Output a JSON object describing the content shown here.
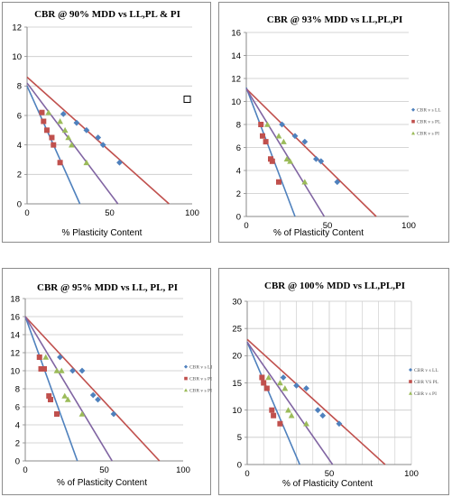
{
  "colors": {
    "ll": "#4f81bd",
    "pl": "#c0504d",
    "pi": "#9bbb59",
    "trend_ll": "#4f81bd",
    "trend_pl": "#c0504d",
    "trend_pi": "#8064a2",
    "grid": "#c8c8c8"
  },
  "chart_data": [
    {
      "type": "scatter",
      "title": "CBR @ 90% MDD vs LL,PL & PI",
      "xlabel": "% Plasticity Content",
      "xlim": [
        0,
        100
      ],
      "ylim": [
        0,
        12
      ],
      "xticks": [
        "0",
        "50",
        "100"
      ],
      "yticks": [
        "0",
        "2",
        "4",
        "6",
        "8",
        "10",
        "12"
      ],
      "xgrid": false,
      "ygrid": true,
      "legend": [],
      "series": [
        {
          "key": "ll",
          "marker": "diamond",
          "points": [
            [
              22,
              6.1
            ],
            [
              30,
              5.5
            ],
            [
              36,
              5
            ],
            [
              43,
              4.5
            ],
            [
              46,
              4
            ],
            [
              56,
              2.8
            ]
          ]
        },
        {
          "key": "pl",
          "marker": "square",
          "points": [
            [
              9,
              6.2
            ],
            [
              10,
              5.6
            ],
            [
              12,
              5
            ],
            [
              15,
              4.5
            ],
            [
              16,
              4
            ],
            [
              20,
              2.8
            ]
          ]
        },
        {
          "key": "pi",
          "marker": "triangle",
          "points": [
            [
              13,
              6.2
            ],
            [
              20,
              5.6
            ],
            [
              23,
              5
            ],
            [
              25,
              4.5
            ],
            [
              27,
              4
            ],
            [
              36,
              2.8
            ]
          ]
        }
      ],
      "trends": [
        {
          "key": "trend_ll",
          "from": [
            0,
            8.0
          ],
          "to": [
            32,
            0
          ]
        },
        {
          "key": "trend_pl",
          "from": [
            0,
            8.6
          ],
          "to": [
            86,
            0
          ]
        },
        {
          "key": "trend_pi",
          "from": [
            0,
            8.2
          ],
          "to": [
            55,
            0
          ]
        }
      ],
      "stray_marker": [
        97,
        7.1
      ]
    },
    {
      "type": "scatter",
      "title": "CBR @ 93% MDD vs LL,PL,PI",
      "xlabel": "% of Plasticity Content",
      "xlim": [
        0,
        100
      ],
      "ylim": [
        0,
        16
      ],
      "xticks": [
        "0",
        "50",
        "100"
      ],
      "yticks": [
        "0",
        "2",
        "4",
        "6",
        "8",
        "10",
        "12",
        "14",
        "16"
      ],
      "xgrid": false,
      "ygrid": true,
      "legend": [
        "CBR v s LL",
        "CBR v s PL",
        "CBR v s PI"
      ],
      "series": [
        {
          "key": "ll",
          "marker": "diamond",
          "points": [
            [
              22,
              8
            ],
            [
              30,
              7
            ],
            [
              36,
              6.5
            ],
            [
              43,
              5
            ],
            [
              46,
              4.8
            ],
            [
              56,
              3
            ]
          ]
        },
        {
          "key": "pl",
          "marker": "square",
          "points": [
            [
              9,
              8
            ],
            [
              10,
              7
            ],
            [
              12,
              6.5
            ],
            [
              15,
              5
            ],
            [
              16,
              4.8
            ],
            [
              20,
              3
            ]
          ]
        },
        {
          "key": "pi",
          "marker": "triangle",
          "points": [
            [
              13,
              8
            ],
            [
              20,
              7
            ],
            [
              23,
              6.5
            ],
            [
              25,
              5
            ],
            [
              27,
              4.8
            ],
            [
              36,
              3
            ]
          ]
        }
      ],
      "trends": [
        {
          "key": "trend_ll",
          "from": [
            0,
            11.2
          ],
          "to": [
            30,
            0
          ]
        },
        {
          "key": "trend_pl",
          "from": [
            0,
            11.1
          ],
          "to": [
            80,
            0
          ]
        },
        {
          "key": "trend_pi",
          "from": [
            0,
            11.1
          ],
          "to": [
            48,
            0
          ]
        }
      ]
    },
    {
      "type": "scatter",
      "title": "CBR @ 95% MDD vs LL, PL, PI",
      "xlabel": "% of Plasticity Content",
      "xlim": [
        0,
        100
      ],
      "ylim": [
        0,
        18
      ],
      "xticks": [
        "0",
        "50",
        "100"
      ],
      "yticks": [
        "0",
        "2",
        "4",
        "6",
        "8",
        "10",
        "12",
        "14",
        "16",
        "18"
      ],
      "xgrid": false,
      "ygrid": true,
      "legend": [
        "CBR v s LL",
        "CBR v s PL",
        "CBR v s PI"
      ],
      "series": [
        {
          "key": "ll",
          "marker": "diamond",
          "points": [
            [
              22,
              11.5
            ],
            [
              30,
              10
            ],
            [
              36,
              10
            ],
            [
              43,
              7.3
            ],
            [
              46,
              6.8
            ],
            [
              56,
              5.2
            ]
          ]
        },
        {
          "key": "pl",
          "marker": "square",
          "points": [
            [
              9,
              11.5
            ],
            [
              10,
              10.2
            ],
            [
              12,
              10.2
            ],
            [
              15,
              7.2
            ],
            [
              16,
              6.8
            ],
            [
              20,
              5.2
            ]
          ]
        },
        {
          "key": "pi",
          "marker": "triangle",
          "points": [
            [
              13,
              11.5
            ],
            [
              20,
              10
            ],
            [
              23,
              10
            ],
            [
              25,
              7.2
            ],
            [
              27,
              6.8
            ],
            [
              36,
              5.2
            ]
          ]
        }
      ],
      "trends": [
        {
          "key": "trend_ll",
          "from": [
            0,
            16
          ],
          "to": [
            33,
            0
          ]
        },
        {
          "key": "trend_pl",
          "from": [
            0,
            16
          ],
          "to": [
            85,
            0
          ]
        },
        {
          "key": "trend_pi",
          "from": [
            0,
            16
          ],
          "to": [
            55,
            0
          ]
        }
      ]
    },
    {
      "type": "scatter",
      "title": "CBR @ 100% MDD vs LL,PL,PI",
      "xlabel": "% of Plasticity Content",
      "xlim": [
        0,
        100
      ],
      "ylim": [
        0,
        30
      ],
      "xticks": [
        "0",
        "50",
        "100"
      ],
      "yticks": [
        "0",
        "5",
        "10",
        "15",
        "20",
        "25",
        "30"
      ],
      "xgrid": true,
      "ygrid": true,
      "legend": [
        "CBR v s LL",
        "CBR VS PL",
        "CBR v s PI"
      ],
      "series": [
        {
          "key": "ll",
          "marker": "diamond",
          "points": [
            [
              22,
              16
            ],
            [
              30,
              14.5
            ],
            [
              36,
              14
            ],
            [
              43,
              10
            ],
            [
              46,
              9
            ],
            [
              56,
              7.5
            ]
          ]
        },
        {
          "key": "pl",
          "marker": "square",
          "points": [
            [
              9,
              16
            ],
            [
              10,
              15
            ],
            [
              12,
              14
            ],
            [
              15,
              10
            ],
            [
              16,
              9
            ],
            [
              20,
              7.5
            ]
          ]
        },
        {
          "key": "pi",
          "marker": "triangle",
          "points": [
            [
              13,
              16
            ],
            [
              20,
              15
            ],
            [
              23,
              14
            ],
            [
              25,
              10
            ],
            [
              27,
              9
            ],
            [
              36,
              7.5
            ]
          ]
        }
      ],
      "trends": [
        {
          "key": "trend_ll",
          "from": [
            0,
            22.5
          ],
          "to": [
            32,
            0
          ]
        },
        {
          "key": "trend_pl",
          "from": [
            0,
            23
          ],
          "to": [
            84,
            0
          ]
        },
        {
          "key": "trend_pi",
          "from": [
            0,
            22.5
          ],
          "to": [
            52,
            0
          ]
        }
      ]
    }
  ]
}
